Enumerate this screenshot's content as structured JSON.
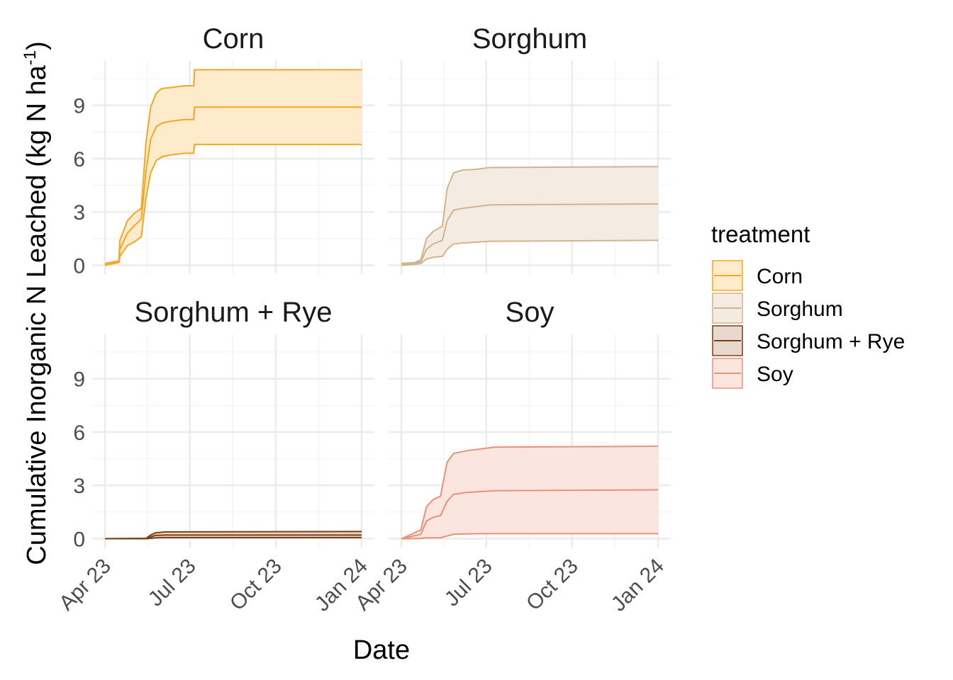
{
  "chart_data": {
    "type": "area",
    "xlabel": "Date",
    "ylabel": "Cumulative Inorganic N Leached (kg N ha",
    "ylabel_sup": "-1",
    "ylabel_close": ")",
    "ylim": [
      -0.5,
      11.5
    ],
    "yticks": [
      0,
      3,
      6,
      9
    ],
    "xlim": [
      "2023-04-01",
      "2024-01-01"
    ],
    "xticks": [
      "2023-04-01",
      "2023-07-01",
      "2023-10-01",
      "2024-01-01"
    ],
    "xtick_labels": [
      "Apr 23",
      "Jul 23",
      "Oct 23",
      "Jan 24"
    ],
    "grid": true,
    "legend_title": "treatment",
    "legend_position": "right",
    "panels": [
      {
        "title": "Corn",
        "color": "#F5A623",
        "fill": "#FDEBCB",
        "x": [
          "2023-04-01",
          "2023-04-16",
          "2023-04-17",
          "2023-04-25",
          "2023-05-02",
          "2023-05-10",
          "2023-05-15",
          "2023-05-20",
          "2023-05-26",
          "2023-06-01",
          "2023-06-10",
          "2023-06-25",
          "2023-07-05",
          "2023-07-06",
          "2024-01-01"
        ],
        "lower": [
          0.0,
          0.15,
          0.5,
          1.1,
          1.3,
          1.6,
          3.8,
          5.2,
          5.9,
          6.1,
          6.2,
          6.3,
          6.3,
          6.8,
          6.8
        ],
        "mean": [
          0.05,
          0.2,
          0.9,
          1.8,
          2.2,
          2.6,
          5.3,
          7.1,
          7.8,
          8.0,
          8.1,
          8.2,
          8.2,
          8.9,
          8.9
        ],
        "upper": [
          0.1,
          0.25,
          1.4,
          2.5,
          2.9,
          3.2,
          6.9,
          8.9,
          9.7,
          9.95,
          10.0,
          10.1,
          10.1,
          11.0,
          11.0
        ]
      },
      {
        "title": "Sorghum",
        "color": "#D2B48C",
        "fill": "#F4ECE2",
        "x": [
          "2023-04-01",
          "2023-04-15",
          "2023-04-22",
          "2023-04-28",
          "2023-05-05",
          "2023-05-15",
          "2023-05-20",
          "2023-05-27",
          "2023-06-05",
          "2023-06-20",
          "2023-07-05",
          "2024-01-01"
        ],
        "lower": [
          0.0,
          0.05,
          0.1,
          0.35,
          0.45,
          0.5,
          0.9,
          1.2,
          1.25,
          1.3,
          1.35,
          1.4
        ],
        "mean": [
          0.05,
          0.1,
          0.2,
          0.9,
          1.2,
          1.4,
          2.5,
          3.1,
          3.2,
          3.3,
          3.4,
          3.45
        ],
        "upper": [
          0.1,
          0.15,
          0.3,
          1.5,
          1.9,
          2.2,
          4.3,
          5.2,
          5.35,
          5.4,
          5.5,
          5.55
        ]
      },
      {
        "title": "Sorghum + Rye",
        "color": "#7B3F12",
        "fill": "#E8D8CD",
        "x": [
          "2023-04-01",
          "2023-05-15",
          "2023-05-20",
          "2023-05-25",
          "2023-06-05",
          "2024-01-01"
        ],
        "lower": [
          0.0,
          0.0,
          0.02,
          0.05,
          0.06,
          0.06
        ],
        "mean": [
          0.0,
          0.01,
          0.1,
          0.18,
          0.2,
          0.2
        ],
        "upper": [
          0.0,
          0.02,
          0.2,
          0.33,
          0.38,
          0.4
        ]
      },
      {
        "title": "Soy",
        "color": "#E8917A",
        "fill": "#FBE5DF",
        "x": [
          "2023-04-01",
          "2023-04-10",
          "2023-04-22",
          "2023-04-28",
          "2023-05-05",
          "2023-05-13",
          "2023-05-20",
          "2023-05-27",
          "2023-06-10",
          "2023-06-25",
          "2023-07-10",
          "2024-01-01"
        ],
        "lower": [
          0.0,
          0.0,
          0.02,
          0.05,
          0.05,
          0.05,
          0.15,
          0.25,
          0.27,
          0.28,
          0.28,
          0.28
        ],
        "mean": [
          0.0,
          0.1,
          0.25,
          1.0,
          1.2,
          1.3,
          2.1,
          2.5,
          2.6,
          2.65,
          2.7,
          2.75
        ],
        "upper": [
          0.0,
          0.2,
          0.5,
          1.8,
          2.2,
          2.4,
          4.3,
          4.8,
          4.95,
          5.05,
          5.15,
          5.2
        ]
      }
    ]
  }
}
